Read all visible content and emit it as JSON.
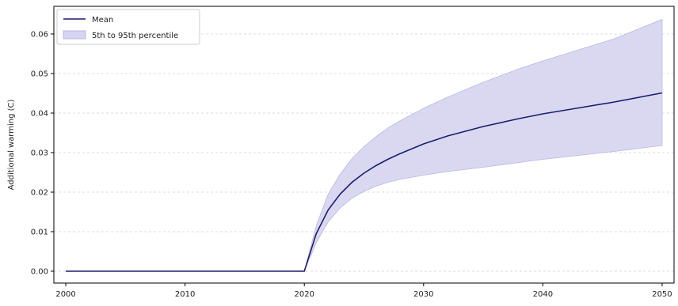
{
  "chart_data": {
    "type": "line",
    "ylabel": "Additional warming (C)",
    "xlim": [
      1999,
      2051
    ],
    "ylim": [
      -0.003,
      0.067
    ],
    "x_ticks": [
      2000,
      2010,
      2020,
      2030,
      2040,
      2050
    ],
    "y_ticks": [
      0.0,
      0.01,
      0.02,
      0.03,
      0.04,
      0.05,
      0.06
    ],
    "y_tick_labels": [
      "0.00",
      "0.01",
      "0.02",
      "0.03",
      "0.04",
      "0.05",
      "0.06"
    ],
    "grid": "y-dashed",
    "legend_position": "top-left",
    "legend": [
      {
        "label": "Mean",
        "kind": "line"
      },
      {
        "label": "5th to 95th percentile",
        "kind": "band"
      }
    ],
    "colors": {
      "mean": "#1c1c6e",
      "band_fill": "#d6d4f0",
      "band_edge": "#b9b6e3",
      "grid": "#cfcfcf"
    },
    "x": [
      2000,
      2010,
      2020,
      2021,
      2022,
      2023,
      2024,
      2025,
      2026,
      2027,
      2028,
      2030,
      2032,
      2035,
      2038,
      2040,
      2043,
      2046,
      2050
    ],
    "series": [
      {
        "name": "Mean",
        "values": [
          0,
          0,
          0,
          0.0095,
          0.0155,
          0.0195,
          0.0225,
          0.0248,
          0.0267,
          0.0283,
          0.0297,
          0.0322,
          0.0342,
          0.0366,
          0.0386,
          0.0398,
          0.0413,
          0.0428,
          0.0451
        ]
      },
      {
        "name": "5th percentile",
        "values": [
          0,
          0,
          0,
          0.0072,
          0.0125,
          0.016,
          0.0185,
          0.0202,
          0.0215,
          0.0225,
          0.0232,
          0.0243,
          0.0252,
          0.0263,
          0.0275,
          0.0283,
          0.0293,
          0.0303,
          0.0318
        ]
      },
      {
        "name": "95th percentile",
        "values": [
          0,
          0,
          0,
          0.0115,
          0.0195,
          0.0245,
          0.0285,
          0.0315,
          0.034,
          0.0362,
          0.038,
          0.0412,
          0.044,
          0.0478,
          0.0512,
          0.0532,
          0.056,
          0.0588,
          0.0637
        ]
      }
    ]
  }
}
